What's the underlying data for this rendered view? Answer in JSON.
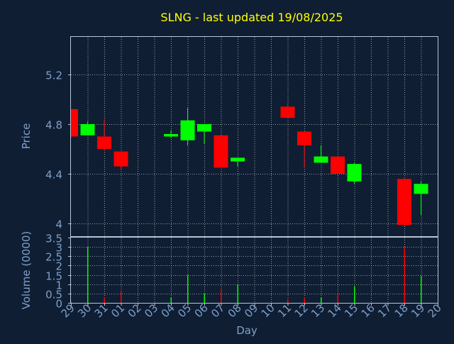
{
  "chart_data": [
    {
      "type": "candlestick",
      "title": "SLNG - last updated 19/08/2025",
      "ylabel": "Price",
      "ylim": [
        3.9,
        5.5
      ],
      "yticks": [
        4,
        4.4,
        4.8,
        5.2
      ],
      "ytick_labels": [
        "4",
        "4.4",
        "4.8",
        "5.2"
      ],
      "grid": true,
      "colors": {
        "up": "#00ff00",
        "down": "#ff0000",
        "title": "#ffff00",
        "label": "#7fa0c8",
        "grid": "#ffffff",
        "background": "#0f1e33"
      },
      "candles": [
        {
          "day": "29",
          "open": 4.92,
          "high": 4.92,
          "low": 4.69,
          "close": 4.7
        },
        {
          "day": "30",
          "open": 4.71,
          "high": 4.82,
          "low": 4.71,
          "close": 4.8
        },
        {
          "day": "31",
          "open": 4.7,
          "high": 4.84,
          "low": 4.59,
          "close": 4.6
        },
        {
          "day": "01",
          "open": 4.58,
          "high": 4.58,
          "low": 4.44,
          "close": 4.46
        },
        {
          "day": "04",
          "open": 4.7,
          "high": 4.75,
          "low": 4.69,
          "close": 4.72
        },
        {
          "day": "05",
          "open": 4.67,
          "high": 4.93,
          "low": 4.63,
          "close": 4.83
        },
        {
          "day": "06",
          "open": 4.74,
          "high": 4.8,
          "low": 4.64,
          "close": 4.8
        },
        {
          "day": "07",
          "open": 4.71,
          "high": 4.71,
          "low": 4.45,
          "close": 4.45
        },
        {
          "day": "08",
          "open": 4.5,
          "high": 4.53,
          "low": 4.46,
          "close": 4.53
        },
        {
          "day": "11",
          "open": 4.94,
          "high": 4.96,
          "low": 4.85,
          "close": 4.85
        },
        {
          "day": "12",
          "open": 4.74,
          "high": 4.74,
          "low": 4.45,
          "close": 4.63
        },
        {
          "day": "13",
          "open": 4.49,
          "high": 4.63,
          "low": 4.49,
          "close": 4.54
        },
        {
          "day": "14",
          "open": 4.54,
          "high": 4.54,
          "low": 4.4,
          "close": 4.4
        },
        {
          "day": "15",
          "open": 4.34,
          "high": 4.49,
          "low": 4.32,
          "close": 4.48
        },
        {
          "day": "18",
          "open": 4.36,
          "high": 4.36,
          "low": 3.98,
          "close": 3.99
        },
        {
          "day": "19",
          "open": 4.24,
          "high": 4.34,
          "low": 4.07,
          "close": 4.32
        }
      ]
    },
    {
      "type": "bar",
      "ylabel": "Volume (0000)",
      "xlabel": "Day",
      "ylim": [
        0,
        3.5
      ],
      "yticks": [
        0,
        0.5,
        1,
        1.5,
        2,
        2.5,
        3,
        3.5
      ],
      "ytick_labels": [
        "0",
        "0.5",
        "1",
        "1.5",
        "2",
        "2.5",
        "3",
        "3.5"
      ],
      "categories": [
        "29",
        "30",
        "31",
        "01",
        "02",
        "03",
        "04",
        "05",
        "06",
        "07",
        "08",
        "09",
        "10",
        "11",
        "12",
        "13",
        "14",
        "15",
        "16",
        "17",
        "18",
        "19",
        "20"
      ],
      "values": [
        0.1,
        3.0,
        0.3,
        0.6,
        0,
        0,
        0.3,
        1.5,
        0.5,
        0.7,
        0.95,
        0,
        0,
        0.2,
        0.3,
        0.3,
        0.5,
        0.9,
        0,
        0,
        3.0,
        1.45,
        0
      ],
      "bar_colors": [
        "#ff0000",
        "#00ff00",
        "#ff0000",
        "#ff0000",
        "#00ff00",
        "#00ff00",
        "#00ff00",
        "#00ff00",
        "#00ff00",
        "#ff0000",
        "#00ff00",
        "#00ff00",
        "#00ff00",
        "#ff0000",
        "#ff0000",
        "#00ff00",
        "#ff0000",
        "#00ff00",
        "#00ff00",
        "#00ff00",
        "#ff0000",
        "#00ff00",
        "#00ff00"
      ]
    }
  ]
}
